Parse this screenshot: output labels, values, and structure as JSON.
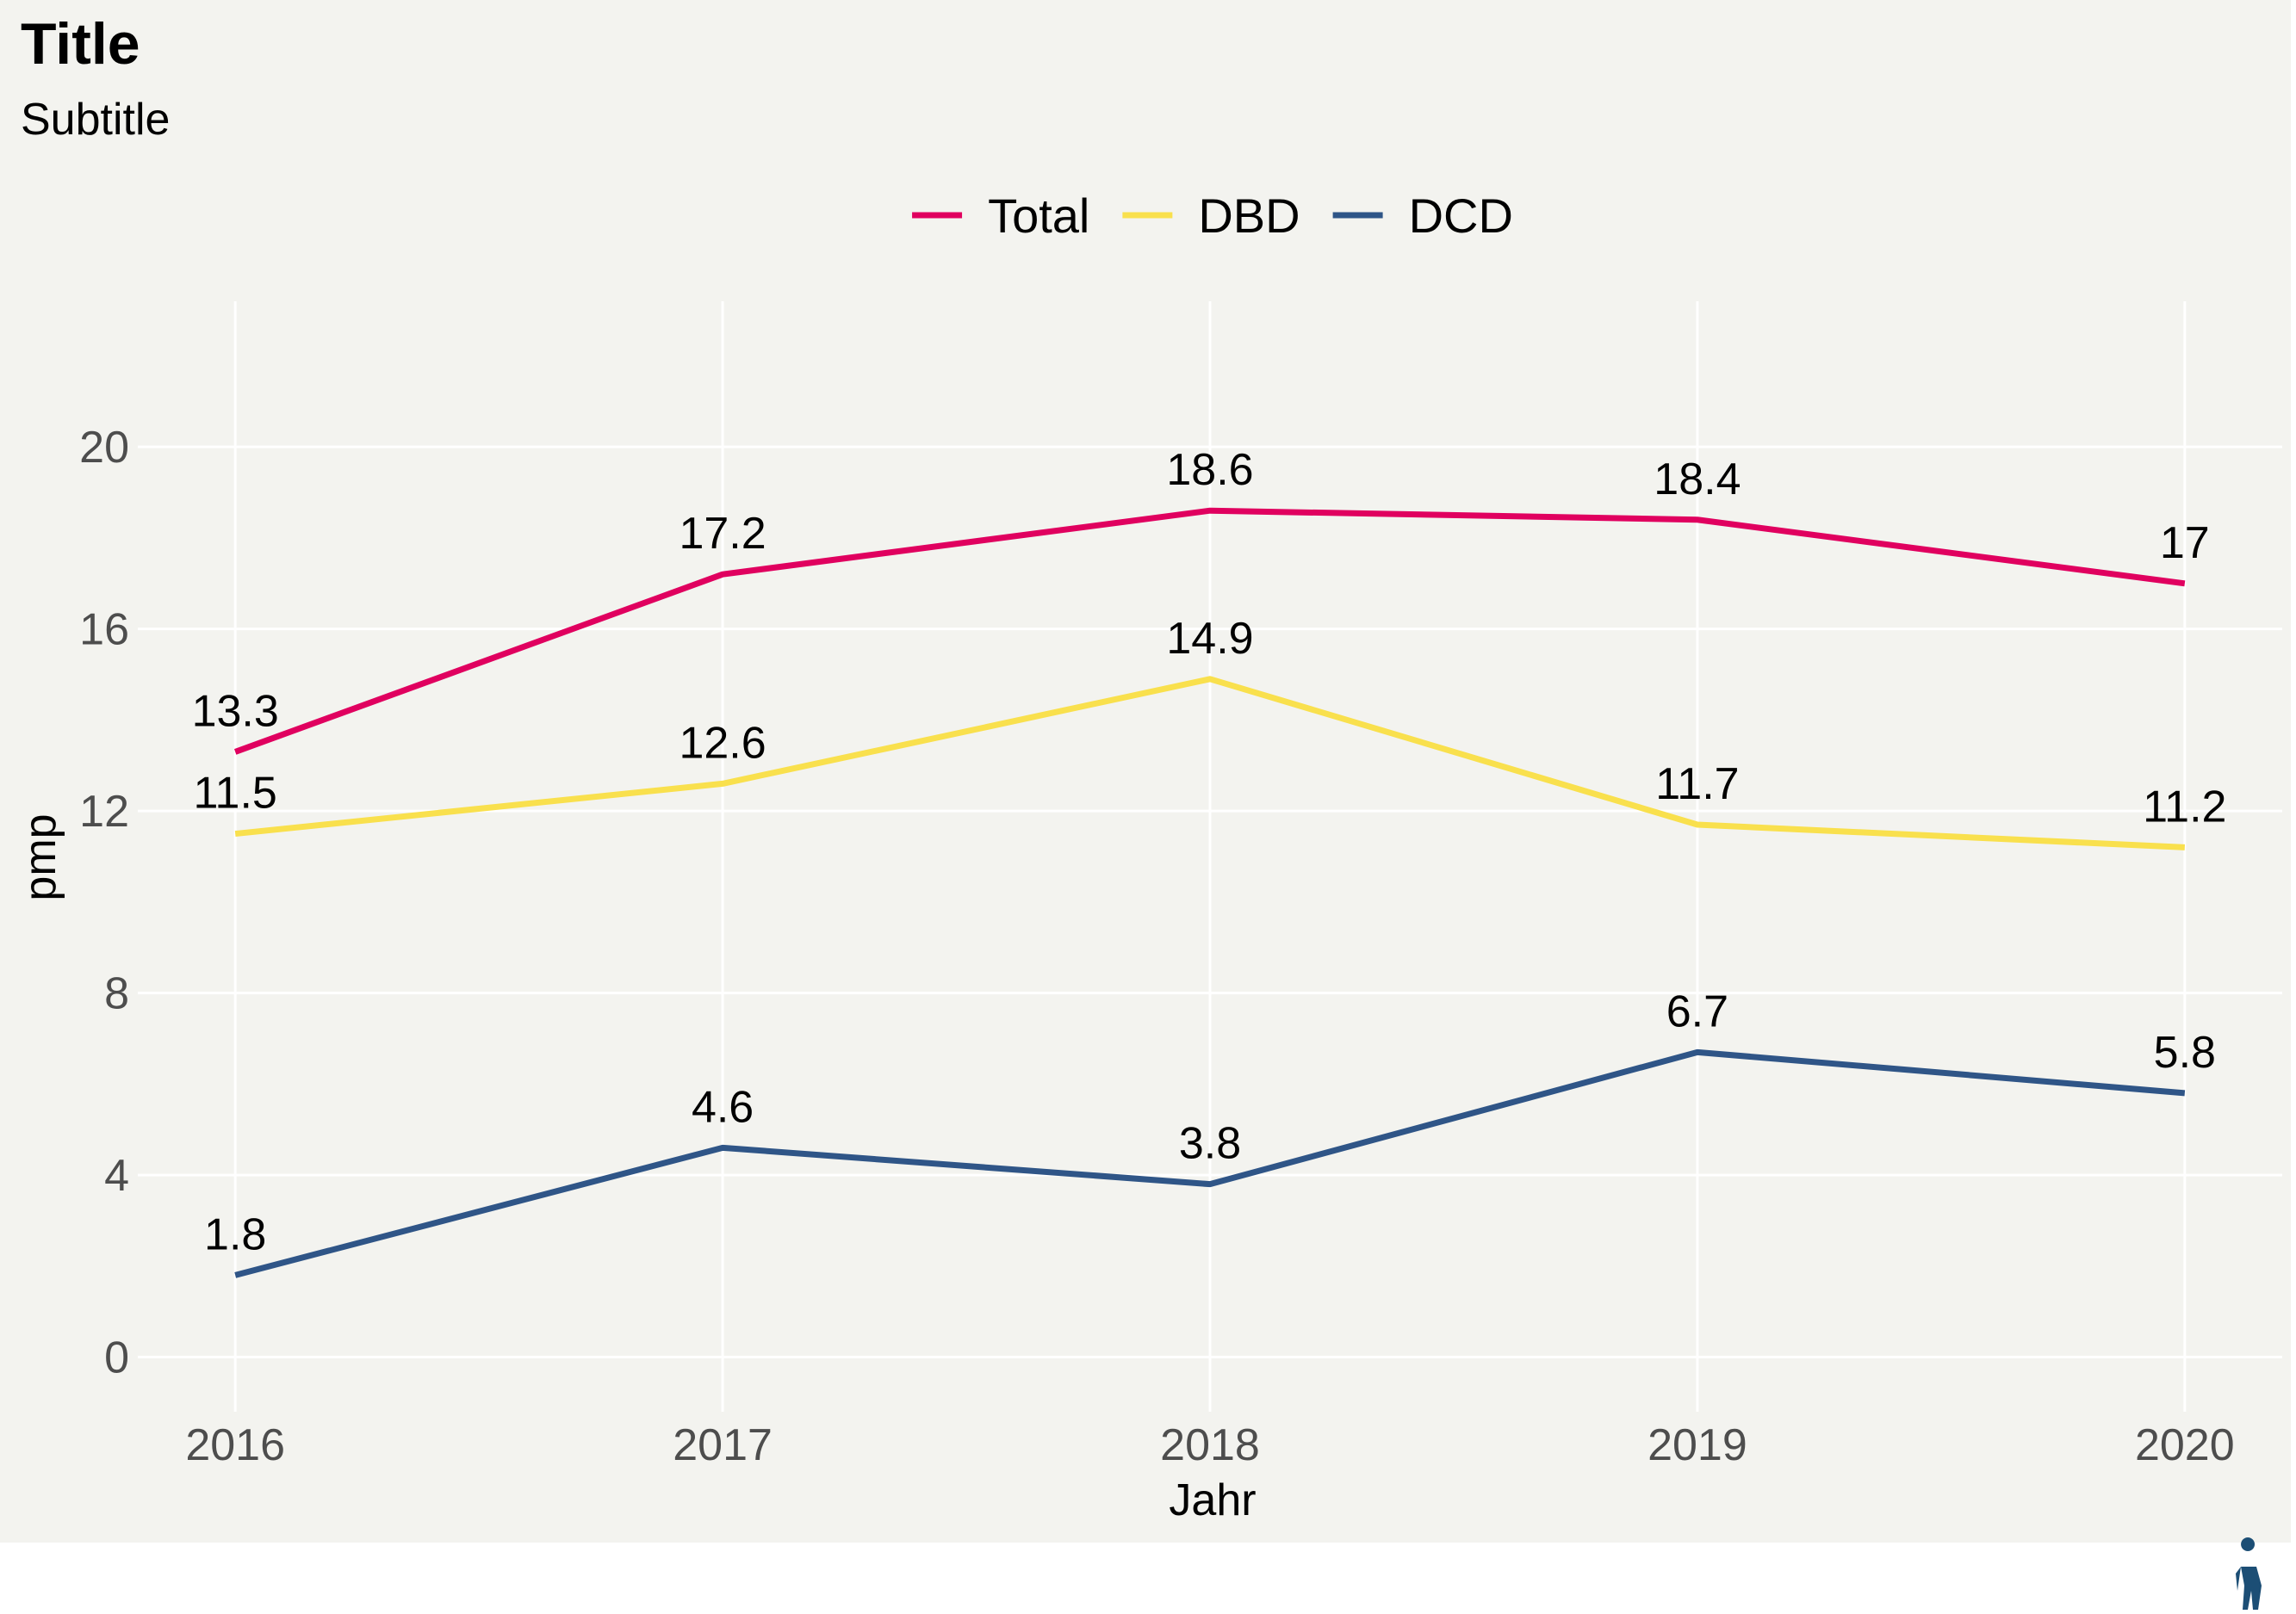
{
  "chart_data": {
    "type": "line",
    "title": "Title",
    "subtitle": "Subtitle",
    "xlabel": "Jahr",
    "ylabel": "pmp",
    "x": [
      2016,
      2017,
      2018,
      2019,
      2020
    ],
    "x_tick_labels": [
      "2016",
      "2017",
      "2018",
      "2019",
      "2020"
    ],
    "y_ticks": [
      0,
      4,
      8,
      12,
      16,
      20
    ],
    "y_tick_labels": [
      "0",
      "4",
      "8",
      "12",
      "16",
      "20"
    ],
    "ylim": [
      -1.2,
      23.2
    ],
    "xlim": [
      2015.8,
      2020.2
    ],
    "grid": true,
    "legend_position": "top",
    "series": [
      {
        "name": "Total",
        "color": "#e0005f",
        "values": [
          13.3,
          17.2,
          18.6,
          18.4,
          17
        ],
        "labels": [
          "13.3",
          "17.2",
          "18.6",
          "18.4",
          "17"
        ]
      },
      {
        "name": "DBD",
        "color": "#f9e04d",
        "values": [
          11.5,
          12.6,
          14.9,
          11.7,
          11.2
        ],
        "labels": [
          "11.5",
          "12.6",
          "14.9",
          "11.7",
          "11.2"
        ]
      },
      {
        "name": "DCD",
        "color": "#2f5587",
        "values": [
          1.8,
          4.6,
          3.8,
          6.7,
          5.8
        ],
        "labels": [
          "1.8",
          "4.6",
          "3.8",
          "6.7",
          "5.8"
        ]
      }
    ]
  },
  "logo": {
    "icon": "person-figure-logo-icon",
    "color": "#1c4e75"
  }
}
